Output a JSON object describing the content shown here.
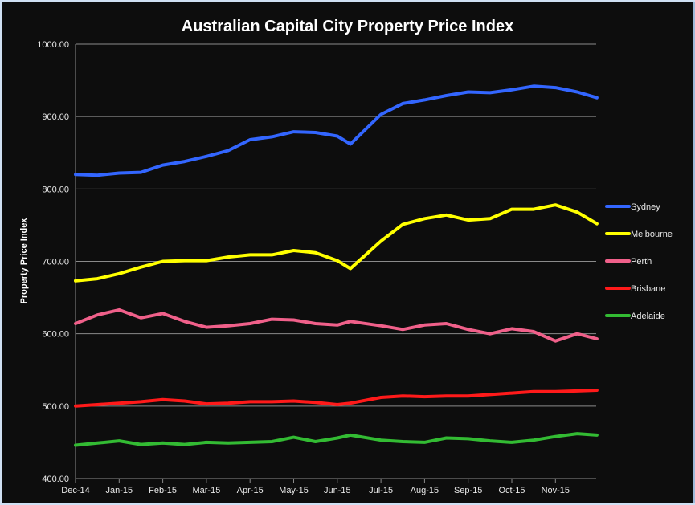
{
  "chart_data": {
    "type": "line",
    "title": "Australian Capital City Property Price Index",
    "xlabel": "",
    "ylabel": "Property Price Index",
    "ylim": [
      400,
      1000
    ],
    "yticks": [
      "400.00",
      "500.00",
      "600.00",
      "700.00",
      "800.00",
      "900.00",
      "1000.00"
    ],
    "ytick_values": [
      400,
      500,
      600,
      700,
      800,
      900,
      1000
    ],
    "xticks": [
      "Dec-14",
      "Jan-15",
      "Feb-15",
      "Mar-15",
      "Apr-15",
      "May-15",
      "Jun-15",
      "Jul-15",
      "Aug-15",
      "Sep-15",
      "Oct-15",
      "Nov-15"
    ],
    "xlim_months": [
      0,
      11.95
    ],
    "x_months": [
      0,
      0.5,
      1,
      1.5,
      2,
      2.5,
      3,
      3.5,
      4,
      4.5,
      5,
      5.5,
      6,
      6.3,
      7,
      7.5,
      8,
      8.5,
      9,
      9.5,
      10,
      10.5,
      11,
      11.5,
      11.95
    ],
    "grid": "horizontal",
    "legend_position": "right",
    "series": [
      {
        "name": "Sydney",
        "color": "#3366ff",
        "values": [
          820,
          819,
          822,
          823,
          833,
          838,
          845,
          853,
          868,
          872,
          879,
          878,
          873,
          862,
          903,
          918,
          923,
          929,
          934,
          933,
          937,
          942,
          940,
          934,
          926
        ]
      },
      {
        "name": "Melbourne",
        "color": "#ffff00",
        "values": [
          673,
          676,
          683,
          692,
          700,
          701,
          701,
          706,
          709,
          709,
          715,
          712,
          701,
          690,
          728,
          751,
          759,
          764,
          757,
          759,
          772,
          772,
          778,
          768,
          752
        ]
      },
      {
        "name": "Perth",
        "color": "#f0608a",
        "values": [
          614,
          626,
          633,
          622,
          628,
          617,
          609,
          611,
          614,
          620,
          619,
          614,
          612,
          617,
          611,
          606,
          612,
          614,
          606,
          600,
          607,
          603,
          590,
          600,
          593
        ]
      },
      {
        "name": "Brisbane",
        "color": "#ff1a1a",
        "values": [
          500,
          502,
          504,
          506,
          509,
          507,
          503,
          504,
          506,
          506,
          507,
          505,
          502,
          504,
          512,
          514,
          513,
          514,
          514,
          516,
          518,
          520,
          520,
          521,
          522
        ]
      },
      {
        "name": "Adelaide",
        "color": "#33bb33",
        "values": [
          446,
          449,
          452,
          447,
          449,
          447,
          450,
          449,
          450,
          451,
          457,
          451,
          456,
          460,
          453,
          451,
          450,
          456,
          455,
          452,
          450,
          453,
          458,
          462,
          460
        ]
      }
    ]
  }
}
